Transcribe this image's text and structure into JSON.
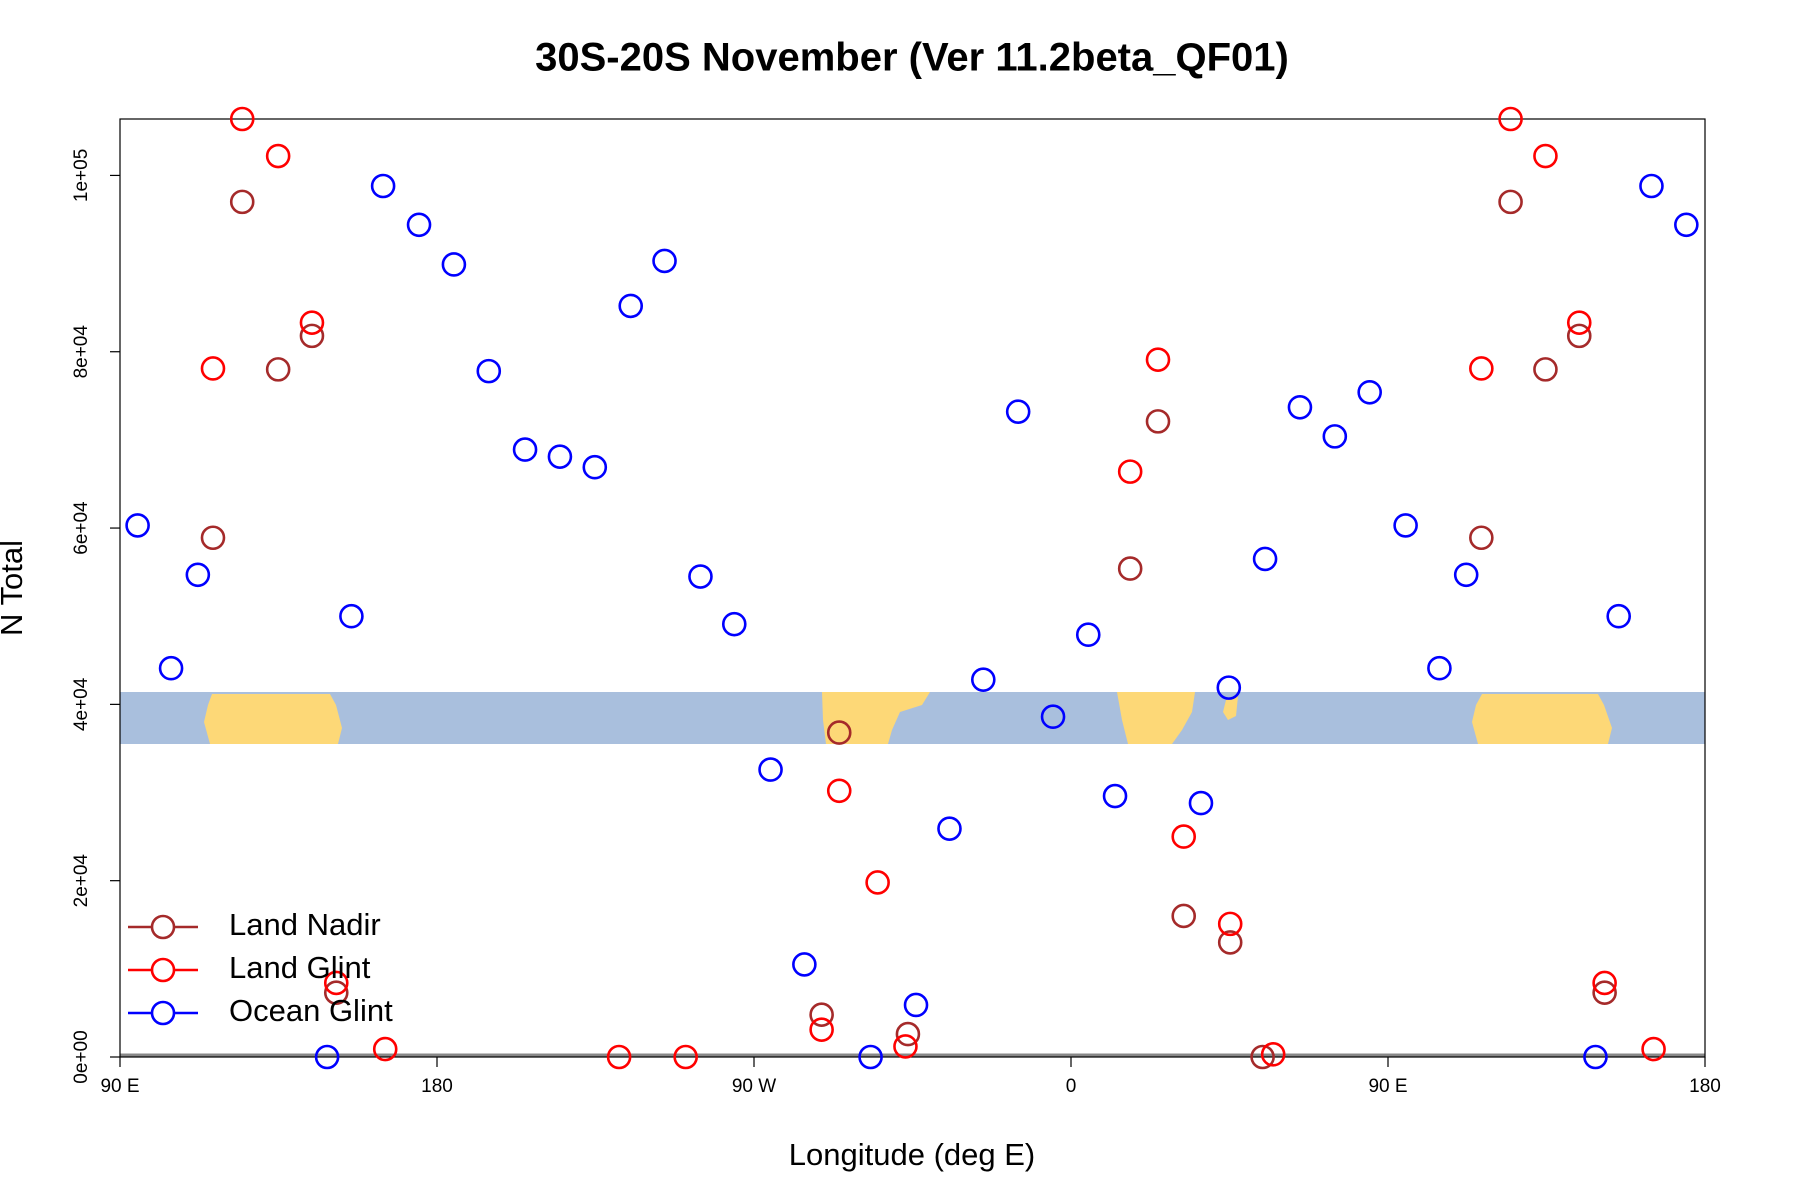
{
  "chart_data": {
    "type": "scatter",
    "title": "30S-20S November (Ver 11.2beta_QF01)",
    "x_label": "Longitude (deg E)",
    "y_label": "N Total",
    "xlim": [
      90,
      540
    ],
    "ylim": [
      0,
      106400
    ],
    "xticks": [
      {
        "value": 90,
        "label": "90 E"
      },
      180,
      {
        "value": 270,
        "label": "90 W"
      },
      {
        "value": 360,
        "label": "0"
      },
      {
        "value": 450,
        "label": "90 E"
      },
      {
        "value": 540,
        "label": "180"
      }
    ],
    "yticks": [
      {
        "value": 0,
        "label": "0e+00"
      },
      {
        "value": 20000,
        "label": "2e+04"
      },
      {
        "value": 40000,
        "label": "4e+04"
      },
      {
        "value": 60000,
        "label": "6e+04"
      },
      {
        "value": 80000,
        "label": "8e+04"
      },
      {
        "value": 100000,
        "label": "1e+05"
      }
    ],
    "legend": "bottomleft",
    "series": [
      {
        "name": "Land Nadir",
        "color": "#a52a2a",
        "x": [
          124.7,
          134.9,
          144.5,
          116.4,
          151.4,
          294.2,
          289.2,
          313.7,
          384.7,
          376.8,
          392,
          405.2,
          414.4,
          484.8,
          494.7,
          504.3,
          476.5,
          511.5
        ],
        "values": [
          97000,
          78000,
          81800,
          58900,
          7300,
          36800,
          4800,
          2600,
          72100,
          55400,
          16000,
          13000,
          0,
          97000,
          78000,
          81800,
          58900,
          7300
        ]
      },
      {
        "name": "Land Glint",
        "color": "#ff0000",
        "x": [
          124.7,
          134.9,
          144.5,
          116.4,
          151.4,
          165.3,
          231.7,
          250.6,
          294.2,
          305.1,
          289.2,
          313,
          384.7,
          376.8,
          392,
          405.2,
          417.4,
          484.8,
          494.7,
          504.3,
          476.5,
          511.5,
          525.4
        ],
        "values": [
          106400,
          102200,
          83300,
          78100,
          8400,
          900,
          0,
          0,
          30200,
          19800,
          3100,
          1200,
          79100,
          66400,
          25000,
          15100,
          300,
          106400,
          102200,
          83300,
          78100,
          8400,
          900
        ]
      },
      {
        "name": "Ocean Glint",
        "color": "#0000ff",
        "x": [
          95,
          104.5,
          112.1,
          155.7,
          148.8,
          164.7,
          174.9,
          184.8,
          194.7,
          205,
          214.9,
          224.8,
          235,
          244.6,
          254.8,
          264.4,
          274.7,
          284.3,
          303.1,
          316,
          325.5,
          335.1,
          345,
          354.9,
          364.9,
          372.5,
          396.9,
          404.8,
          415.1,
          425,
          434.9,
          444.8,
          455,
          464.6,
          472.2,
          515.5,
          508.9,
          524.8,
          534.7
        ],
        "values": [
          60300,
          44100,
          54700,
          50000,
          0,
          98800,
          94400,
          89900,
          77800,
          68900,
          68100,
          66900,
          85200,
          90300,
          54500,
          49100,
          32600,
          10500,
          0,
          5900,
          25900,
          42800,
          73200,
          38600,
          47900,
          29600,
          28800,
          41900,
          56500,
          73700,
          70400,
          75400,
          60300,
          44100,
          54700,
          50000,
          0,
          98800,
          94400
        ]
      }
    ]
  }
}
